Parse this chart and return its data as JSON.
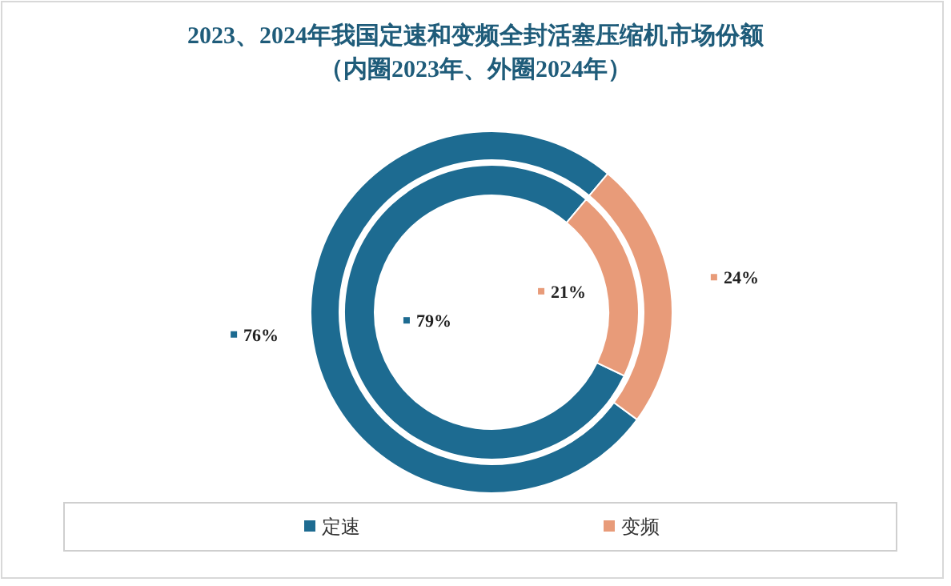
{
  "chart_data": {
    "type": "donut",
    "title": "2023、2024年我国定速和变频全封活塞压缩机市场份额",
    "subtitle": "（内圈2023年、外圈2024年）",
    "categories": [
      "定速",
      "变频"
    ],
    "colors": [
      "#1d6b91",
      "#e89b79"
    ],
    "series": [
      {
        "values": [
          79,
          21
        ],
        "value_labels": [
          "79%",
          "21%"
        ]
      },
      {
        "values": [
          76,
          24
        ],
        "value_labels": [
          "76%",
          "24%"
        ]
      }
    ],
    "legend": "bottom"
  }
}
